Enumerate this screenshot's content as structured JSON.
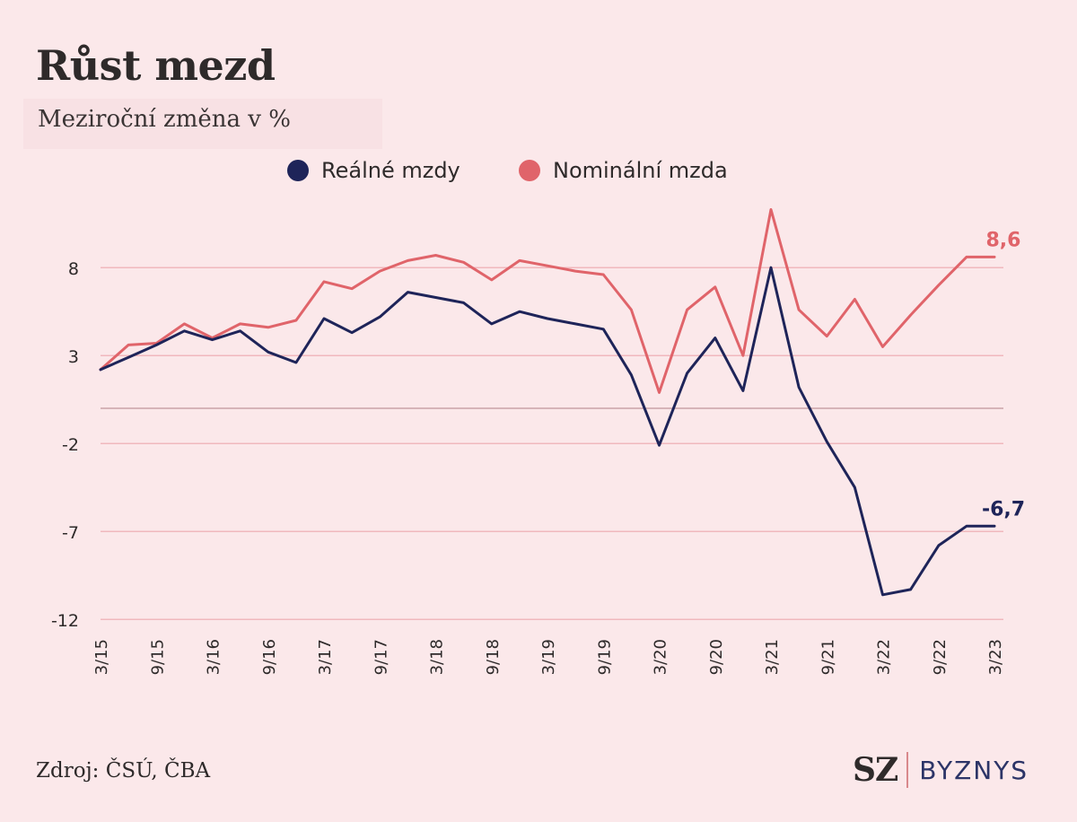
{
  "header": {
    "title": "Růst mezd",
    "subtitle": "Meziroční změna v %"
  },
  "footer": {
    "source": "Zdroj: ČSÚ, ČBA",
    "logo_sz": "SZ",
    "logo_byznys": "BYZNYS"
  },
  "colors": {
    "background": "#fbe8ea",
    "real": "#1e2459",
    "nominal": "#e0646a",
    "grid": "#f0b8bd"
  },
  "chart_data": {
    "type": "line",
    "title": "Růst mezd",
    "subtitle": "Meziroční změna v %",
    "legend_position": "top-center",
    "grid": true,
    "ylim": [
      -12,
      11.5
    ],
    "yticks": [
      8,
      3,
      -2,
      -7,
      -12
    ],
    "ytick_labels": [
      "8",
      "3",
      "-2",
      "-7",
      "-12"
    ],
    "categories": [
      "3/15",
      "6/15",
      "9/15",
      "12/15",
      "3/16",
      "6/16",
      "9/16",
      "12/16",
      "3/17",
      "6/17",
      "9/17",
      "12/17",
      "3/18",
      "6/18",
      "9/18",
      "12/18",
      "3/19",
      "6/19",
      "9/19",
      "12/19",
      "3/20",
      "6/20",
      "9/20",
      "12/20",
      "3/21",
      "6/21",
      "9/21",
      "12/21",
      "3/22",
      "6/22",
      "9/22",
      "12/22",
      "3/23"
    ],
    "xtick_labels": [
      "3/15",
      "9/15",
      "3/16",
      "9/16",
      "3/17",
      "9/17",
      "3/18",
      "9/18",
      "3/19",
      "9/19",
      "3/20",
      "9/20",
      "3/21",
      "9/21",
      "3/22",
      "9/22",
      "3/23"
    ],
    "series": [
      {
        "name": "Reálné mzdy",
        "color": "#1e2459",
        "values": [
          2.2,
          2.9,
          3.6,
          4.4,
          3.9,
          4.4,
          3.2,
          2.6,
          5.1,
          4.3,
          5.2,
          6.6,
          6.3,
          6.0,
          4.8,
          5.5,
          5.1,
          4.8,
          4.5,
          1.9,
          -2.1,
          2.0,
          4.0,
          1.0,
          8.0,
          1.2,
          -1.9,
          -4.5,
          -10.6,
          -10.3,
          -7.8,
          -6.7,
          -6.7
        ],
        "last_label": "-6,7"
      },
      {
        "name": "Nominální mzda",
        "color": "#e0646a",
        "values": [
          2.2,
          3.6,
          3.7,
          4.8,
          4.0,
          4.8,
          4.6,
          5.0,
          7.2,
          6.8,
          7.8,
          8.4,
          8.7,
          8.3,
          7.3,
          8.4,
          8.1,
          7.8,
          7.6,
          5.6,
          0.9,
          5.6,
          6.9,
          3.0,
          11.3,
          5.6,
          4.1,
          6.2,
          3.5,
          5.3,
          7.0,
          8.6,
          8.6
        ],
        "last_label": "8,6"
      }
    ]
  }
}
